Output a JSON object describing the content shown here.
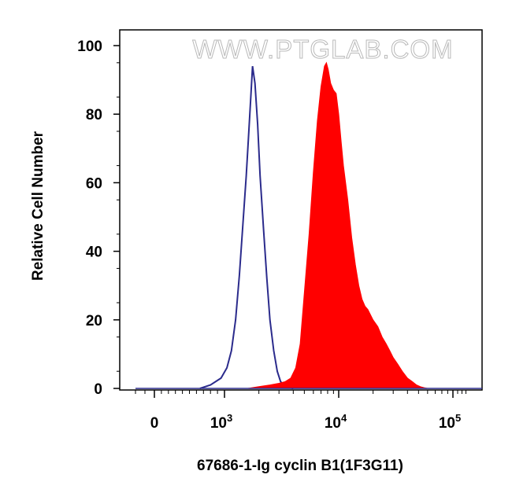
{
  "watermark": "WWW.PTGLAB.COM",
  "chart_data": {
    "type": "area",
    "xlabel": "67686-1-Ig cyclin B1(1F3G11)",
    "ylabel": "Relative Cell Number",
    "x_scale": "biexponential",
    "xlim": [
      -300,
      140000
    ],
    "ylim": [
      0,
      100
    ],
    "y_ticks": [
      "0",
      "20",
      "40",
      "60",
      "80",
      "100"
    ],
    "x_ticks": [
      {
        "label": "0",
        "base": "",
        "exp": ""
      },
      {
        "label": "",
        "base": "10",
        "exp": "3"
      },
      {
        "label": "",
        "base": "10",
        "exp": "4"
      },
      {
        "label": "",
        "base": "10",
        "exp": "5"
      }
    ],
    "grid": false,
    "legend": "none",
    "series": [
      {
        "style": "outline",
        "color": "#2b2b8c",
        "x": [
          650,
          800,
          950,
          1050,
          1150,
          1250,
          1350,
          1450,
          1550,
          1620,
          1700,
          1760,
          1850,
          1950,
          2050,
          2200,
          2350,
          2500,
          2700,
          2900,
          3100,
          3300,
          3500,
          4000
        ],
        "y": [
          0,
          1,
          3,
          6,
          11,
          20,
          33,
          48,
          62,
          73,
          85,
          94,
          89,
          77,
          62,
          46,
          32,
          20,
          11,
          5,
          2,
          1,
          0.3,
          0
        ]
      },
      {
        "style": "filled",
        "color": "#ff0000",
        "x": [
          1600,
          2000,
          2500,
          3000,
          3400,
          3800,
          4200,
          4600,
          5000,
          5500,
          6000,
          6500,
          7000,
          7500,
          7800,
          8100,
          8500,
          9000,
          9500,
          10000,
          10500,
          11000,
          12000,
          13000,
          14000,
          15000,
          16000,
          17000,
          18000,
          20000,
          22000,
          24000,
          26000,
          28000,
          30000,
          33000,
          36000,
          40000,
          44000,
          48000,
          52000,
          56000,
          60000
        ],
        "y": [
          0,
          0.5,
          1,
          1.5,
          2,
          3,
          6,
          13,
          28,
          45,
          63,
          78,
          88,
          94,
          95,
          93,
          89,
          87,
          86,
          80,
          72,
          65,
          55,
          44,
          36,
          30,
          26,
          24,
          23,
          20,
          18,
          15,
          13,
          11,
          9,
          7,
          5,
          3,
          2,
          1,
          0.5,
          0.2,
          0
        ]
      }
    ]
  }
}
